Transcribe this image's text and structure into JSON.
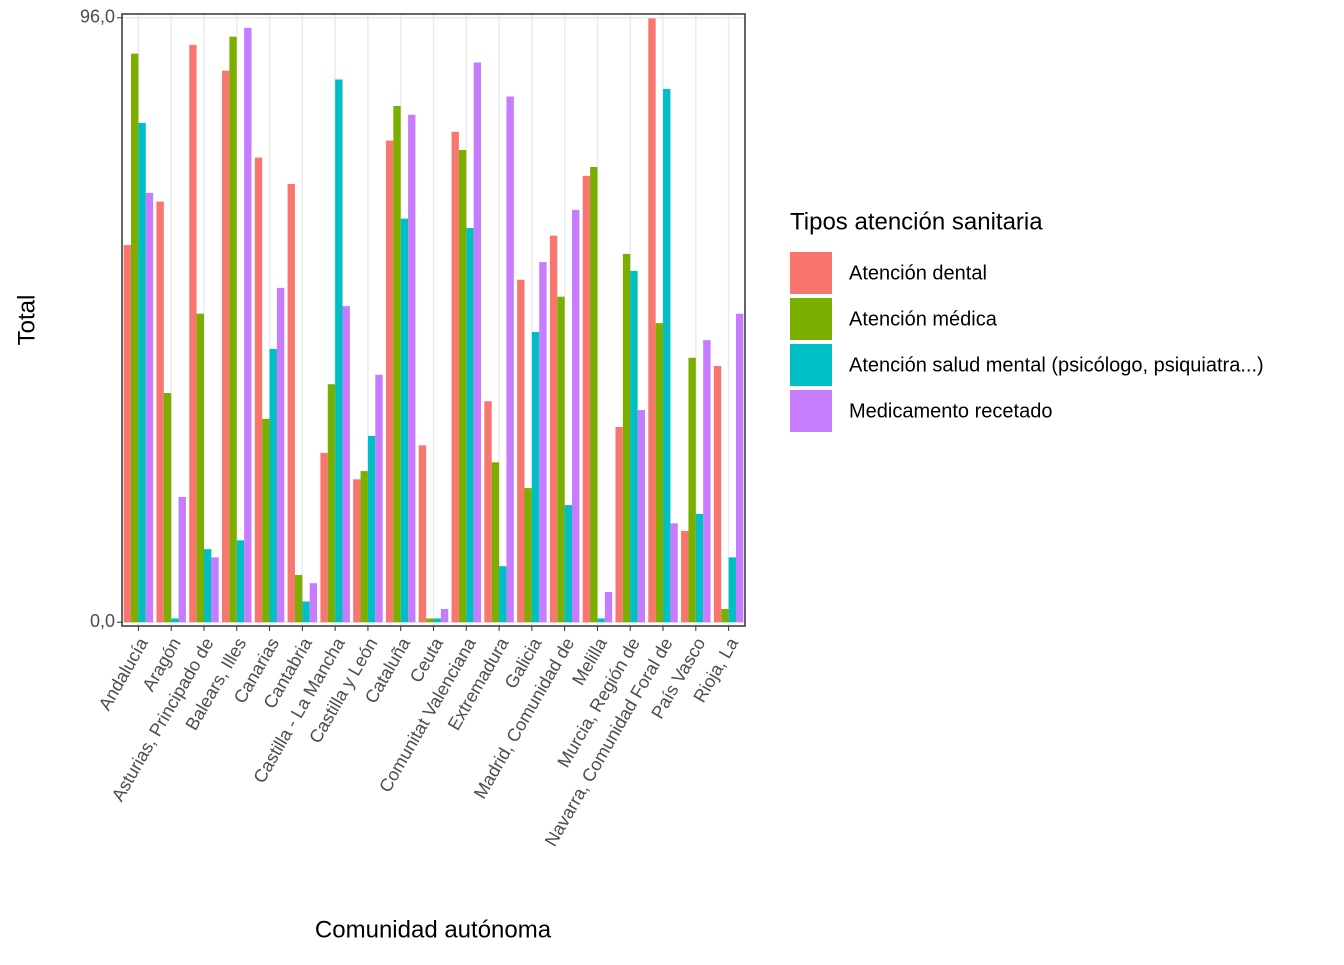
{
  "chart_data": {
    "type": "bar",
    "x_label": "Comunidad autónoma",
    "y_label": "Total",
    "legend_title": "Tipos atención sanitaria",
    "categories": [
      "Andalucía",
      "Aragón",
      "Asturias, Principado de",
      "Balears, Illes",
      "Canarias",
      "Cantabria",
      "Castilla - La Mancha",
      "Castilla y León",
      "Cataluña",
      "Ceuta",
      "Comunitat Valenciana",
      "Extremadura",
      "Galicia",
      "Madrid, Comunidad de",
      "Melilla",
      "Murcia, Región de",
      "Navarra, Comunidad Foral de",
      "País Vasco",
      "Rioja, La"
    ],
    "series": [
      {
        "name": "Atención dental",
        "color": "#F8766D",
        "values": [
          59.9,
          66.8,
          91.7,
          87.6,
          73.8,
          69.6,
          26.9,
          22.7,
          76.5,
          28.1,
          77.9,
          35.1,
          54.4,
          61.4,
          70.9,
          31.0,
          95.9,
          14.5,
          40.7
        ]
      },
      {
        "name": "Atención médica",
        "color": "#7CAE00",
        "values": [
          90.3,
          36.4,
          49.0,
          93.0,
          32.3,
          7.5,
          37.8,
          24.0,
          82.0,
          0.6,
          75.0,
          25.4,
          21.3,
          51.7,
          72.3,
          58.5,
          47.5,
          42.0,
          2.1
        ]
      },
      {
        "name": "Atención salud mental (psicólogo, psiquiatra...)",
        "color": "#00BFC4",
        "values": [
          79.3,
          0.6,
          11.6,
          13.0,
          43.4,
          3.3,
          86.2,
          29.6,
          64.1,
          0.6,
          62.6,
          8.9,
          46.1,
          18.6,
          0.6,
          55.8,
          84.7,
          17.2,
          10.3
        ]
      },
      {
        "name": "Medicamento recetado",
        "color": "#C77CFF",
        "values": [
          68.2,
          19.9,
          10.3,
          94.4,
          53.1,
          6.2,
          50.2,
          39.3,
          80.6,
          2.1,
          88.9,
          83.5,
          57.2,
          65.5,
          4.8,
          33.7,
          15.7,
          44.8,
          49.0
        ]
      }
    ],
    "ylim": [
      -0.6,
      96.6
    ],
    "yticks": [
      {
        "value": 0,
        "label": "0,0"
      },
      {
        "value": 96,
        "label": "96,0"
      }
    ],
    "grid": true,
    "legend_position": "right"
  }
}
